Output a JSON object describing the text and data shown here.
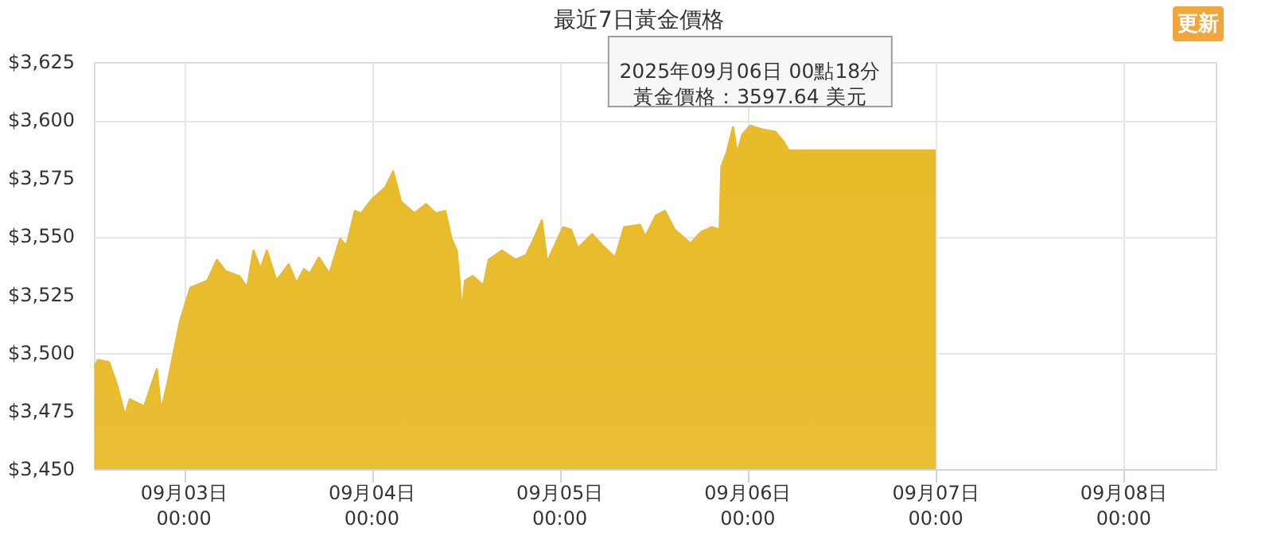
{
  "chart_data": {
    "type": "area",
    "title": "最近7日黃金價格",
    "x": [
      "2025-09-02T12:33",
      "2025-09-02T13:01",
      "2025-09-02T14:26",
      "2025-09-02T15:28",
      "2025-09-02T16:28",
      "2025-09-02T17:05",
      "2025-09-02T18:55",
      "2025-09-02T20:32",
      "2025-09-02T21:05",
      "2025-09-02T21:54",
      "2025-09-02T23:27",
      "2025-09-03T00:49",
      "2025-09-03T02:59",
      "2025-09-03T04:13",
      "2025-09-03T05:21",
      "2025-09-03T07:04",
      "2025-09-03T08:04",
      "2025-09-03T08:53",
      "2025-09-03T09:46",
      "2025-09-03T10:35",
      "2025-09-03T11:48",
      "2025-09-03T13:22",
      "2025-09-03T14:23",
      "2025-09-03T15:19",
      "2025-09-03T16:04",
      "2025-09-03T17:14",
      "2025-09-03T18:34",
      "2025-09-03T19:56",
      "2025-09-03T20:45",
      "2025-09-03T21:49",
      "2025-09-03T22:38",
      "2025-09-04T00:00",
      "2025-09-04T01:41",
      "2025-09-04T02:43",
      "2025-09-04T03:43",
      "2025-09-04T05:26",
      "2025-09-04T06:55",
      "2025-09-04T08:08",
      "2025-09-04T09:22",
      "2025-09-04T10:10",
      "2025-09-04T10:50",
      "2025-09-04T11:11",
      "2025-09-04T11:32",
      "2025-09-04T11:52",
      "2025-09-04T12:53",
      "2025-09-04T14:14",
      "2025-09-04T14:55",
      "2025-09-04T16:37",
      "2025-09-04T18:19",
      "2025-09-04T19:40",
      "2025-09-04T20:41",
      "2025-09-04T21:42",
      "2025-09-04T22:22",
      "2025-09-05T00:25",
      "2025-09-05T01:25",
      "2025-09-05T02:18",
      "2025-09-05T04:08",
      "2025-09-05T05:29",
      "2025-09-05T07:04",
      "2025-09-05T08:12",
      "2025-09-05T10:14",
      "2025-09-05T10:55",
      "2025-09-05T12:16",
      "2025-09-05T13:25",
      "2025-09-05T14:39",
      "2025-09-05T16:41",
      "2025-09-05T18:02",
      "2025-09-05T19:23",
      "2025-09-05T20:24",
      "2025-09-05T20:37",
      "2025-09-05T21:18",
      "2025-09-05T22:07",
      "2025-09-05T22:38",
      "2025-09-05T23:20",
      "2025-09-06T00:18",
      "2025-09-06T01:50",
      "2025-09-06T03:31",
      "2025-09-06T04:32",
      "2025-09-06T05:14",
      "2025-09-07T00:00"
    ],
    "series": [
      {
        "color": "#e8bb2a",
        "values": [
          3494,
          3497,
          3496,
          3486,
          3473,
          3480,
          3477,
          3493,
          3475,
          3487,
          3513,
          3528,
          3531,
          3540,
          3535,
          3533,
          3528,
          3544,
          3536,
          3544,
          3531,
          3538,
          3530,
          3536,
          3534,
          3541,
          3534,
          3549,
          3546,
          3561,
          3560,
          3566,
          3571,
          3578,
          3565,
          3560,
          3564,
          3560,
          3561,
          3549,
          3544,
          3531,
          3517,
          3531,
          3533,
          3529,
          3540,
          3544,
          3540,
          3542,
          3549,
          3557,
          3539,
          3554,
          3553,
          3545,
          3551,
          3546,
          3541,
          3554,
          3555,
          3550,
          3559,
          3561,
          3553,
          3547,
          3552,
          3554,
          3553,
          3580,
          3586,
          3597,
          3586,
          3594,
          3597.64,
          3596,
          3595,
          3591,
          3587,
          3587
        ]
      }
    ],
    "xlim": [
      "2025-09-02T12:30",
      "2025-09-08T11:45"
    ],
    "xticks": [
      {
        "value": "2025-09-03T00:00",
        "label": "09月03日\n00:00"
      },
      {
        "value": "2025-09-04T00:00",
        "label": "09月04日\n00:00"
      },
      {
        "value": "2025-09-05T00:00",
        "label": "09月05日\n00:00"
      },
      {
        "value": "2025-09-06T00:00",
        "label": "09月06日\n00:00"
      },
      {
        "value": "2025-09-07T00:00",
        "label": "09月07日\n00:00"
      },
      {
        "value": "2025-09-08T00:00",
        "label": "09月08日\n00:00"
      }
    ],
    "ylim": [
      3450,
      3625
    ],
    "yticks": [
      {
        "value": 3450,
        "label": "$3,450"
      },
      {
        "value": 3475,
        "label": "$3,475"
      },
      {
        "value": 3500,
        "label": "$3,500"
      },
      {
        "value": 3525,
        "label": "$3,525"
      },
      {
        "value": 3550,
        "label": "$3,550"
      },
      {
        "value": 3575,
        "label": "$3,575"
      },
      {
        "value": 3600,
        "label": "$3,600"
      },
      {
        "value": 3625,
        "label": "$3,625"
      }
    ],
    "grid": true,
    "marker": "none",
    "annotations": [
      {
        "text": "2025年09月06日 00點18分",
        "x": "2025-09-06T00:18",
        "y": 3597.64
      },
      {
        "text": "黃金價格：3597.64 美元",
        "x": "2025-09-06T00:18",
        "y": 3597.64
      },
      "更新"
    ]
  }
}
